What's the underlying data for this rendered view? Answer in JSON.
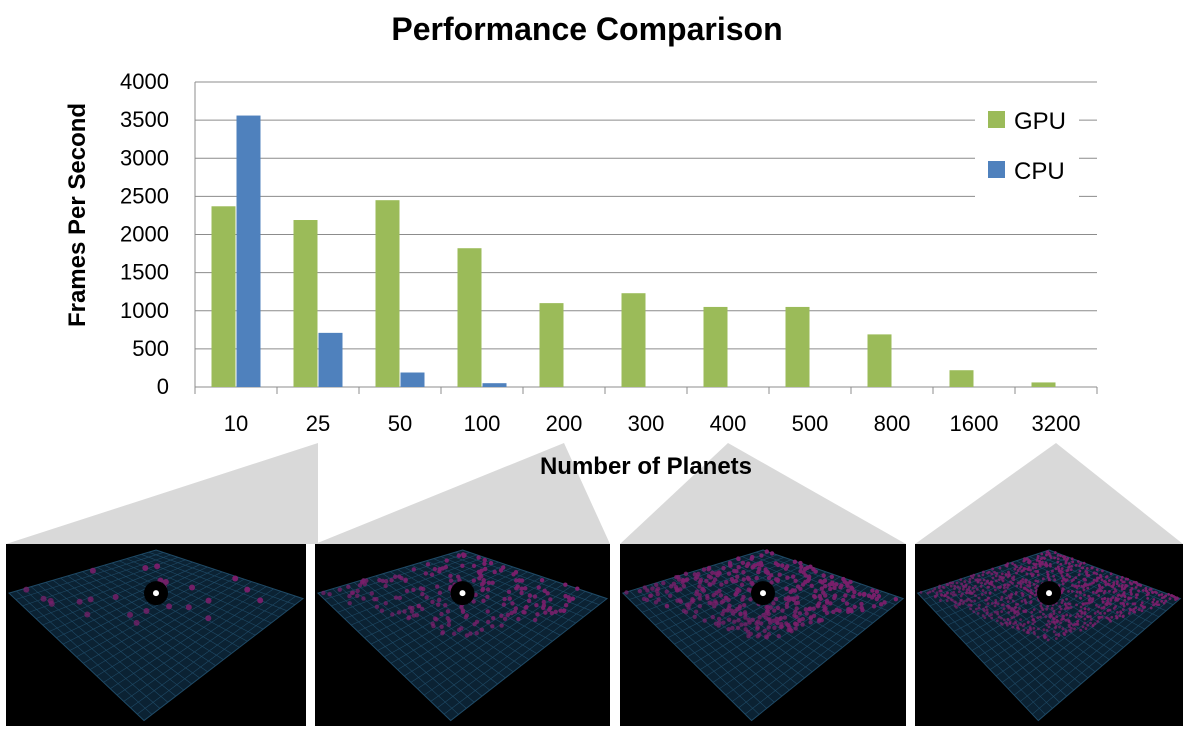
{
  "chart_data": {
    "type": "bar",
    "title": "Performance Comparison",
    "xlabel": "Number of Planets",
    "ylabel": "Frames Per Second",
    "categories": [
      "10",
      "25",
      "50",
      "100",
      "200",
      "300",
      "400",
      "500",
      "800",
      "1600",
      "3200"
    ],
    "series": [
      {
        "name": "GPU",
        "color": "#9BBB59",
        "values": [
          2370,
          2190,
          2450,
          1820,
          1100,
          1230,
          1050,
          1050,
          690,
          220,
          60
        ]
      },
      {
        "name": "CPU",
        "color": "#4F81BD",
        "values": [
          3560,
          710,
          190,
          50,
          0,
          0,
          0,
          0,
          0,
          0,
          0
        ]
      }
    ],
    "ylim": [
      0,
      4000
    ],
    "yticks": [
      0,
      500,
      1000,
      1500,
      2000,
      2500,
      3000,
      3500,
      4000
    ],
    "grid": true,
    "legend_position": "top-right"
  },
  "thumbnails": [
    {
      "category": "25",
      "planet_count": 25
    },
    {
      "category": "200",
      "planet_count": 200
    },
    {
      "category": "400",
      "planet_count": 400
    },
    {
      "category": "3200",
      "planet_count": 3200
    }
  ],
  "colors": {
    "grid": "#8c8c8c",
    "callout": "#d9d9d9",
    "grid_plane": "#1f4a66",
    "planet": "#7a1f6b"
  }
}
